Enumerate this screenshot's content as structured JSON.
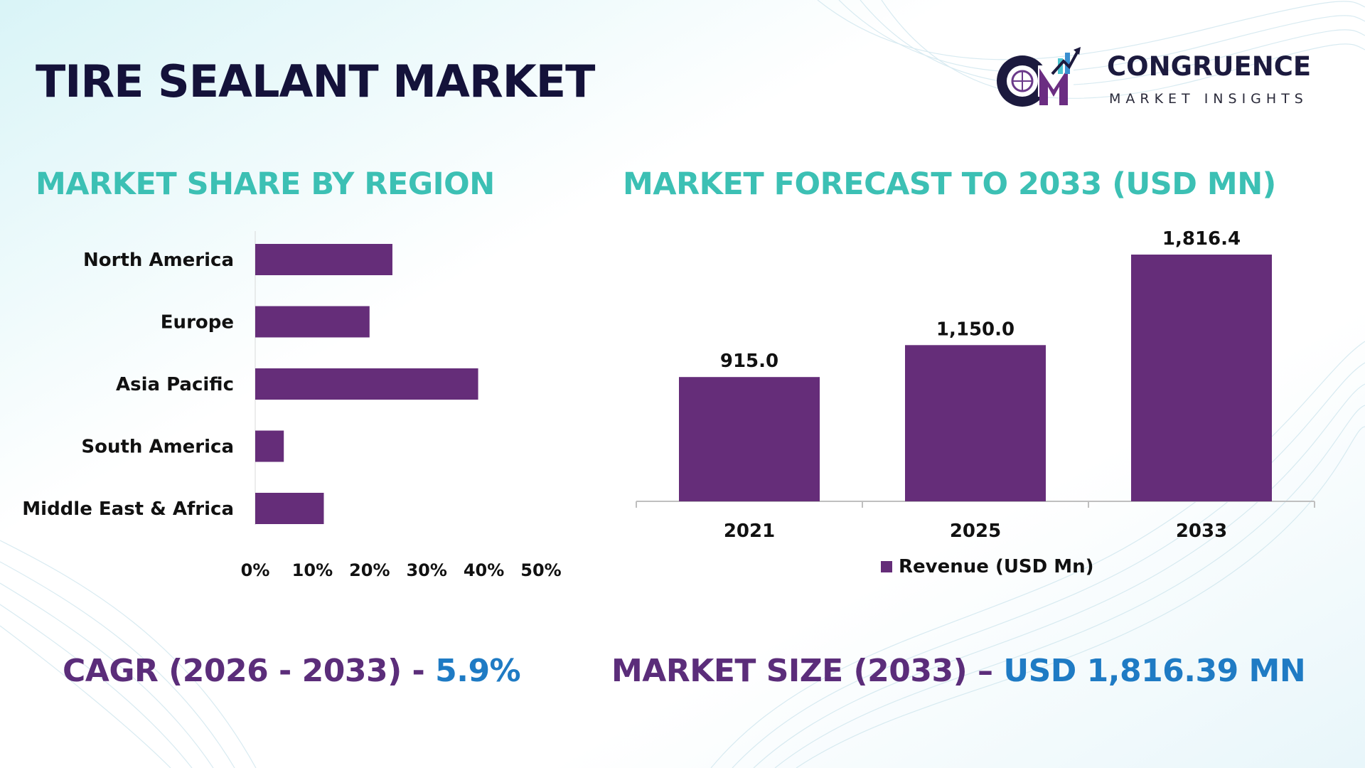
{
  "title": "TIRE SEALANT MARKET",
  "logo": {
    "name": "CONGRUENCE",
    "tagline": "MARKET INSIGHTS"
  },
  "colors": {
    "bar": "#652d79",
    "section_title": "#3cc0b4",
    "kpi_label": "#5b2d7a",
    "kpi_value": "#1f7bc4",
    "title": "#14123a"
  },
  "sections": {
    "share_title": "MARKET SHARE BY REGION",
    "forecast_title": "MARKET FORECAST TO 2033 (USD MN)"
  },
  "kpis": {
    "cagr_label": "CAGR (2026 - 2033) - ",
    "cagr_value": "5.9%",
    "size_label": "MARKET SIZE (2033) – ",
    "size_value": "USD 1,816.39 MN"
  },
  "chart_data": [
    {
      "type": "bar",
      "orientation": "horizontal",
      "title": "MARKET SHARE BY REGION",
      "categories": [
        "North America",
        "Europe",
        "Asia Pacific",
        "South America",
        "Middle East & Africa"
      ],
      "values": [
        24,
        20,
        39,
        5,
        12
      ],
      "xlim": [
        0,
        50
      ],
      "ticks": [
        0,
        10,
        20,
        30,
        40,
        50
      ],
      "tick_labels": [
        "0%",
        "10%",
        "20%",
        "30%",
        "40%",
        "50%"
      ],
      "grid": false
    },
    {
      "type": "bar",
      "orientation": "vertical",
      "title": "MARKET FORECAST TO 2033 (USD MN)",
      "categories": [
        "2021",
        "2025",
        "2033"
      ],
      "values": [
        915.0,
        1150.0,
        1816.4
      ],
      "data_labels": [
        "915.0",
        "1,150.0",
        "1,816.4"
      ],
      "series": [
        {
          "name": "Revenue (USD Mn)",
          "values": [
            915.0,
            1150.0,
            1816.4
          ]
        }
      ],
      "ylim": [
        0,
        1816.4
      ],
      "legend": "bottom",
      "grid": false
    }
  ]
}
